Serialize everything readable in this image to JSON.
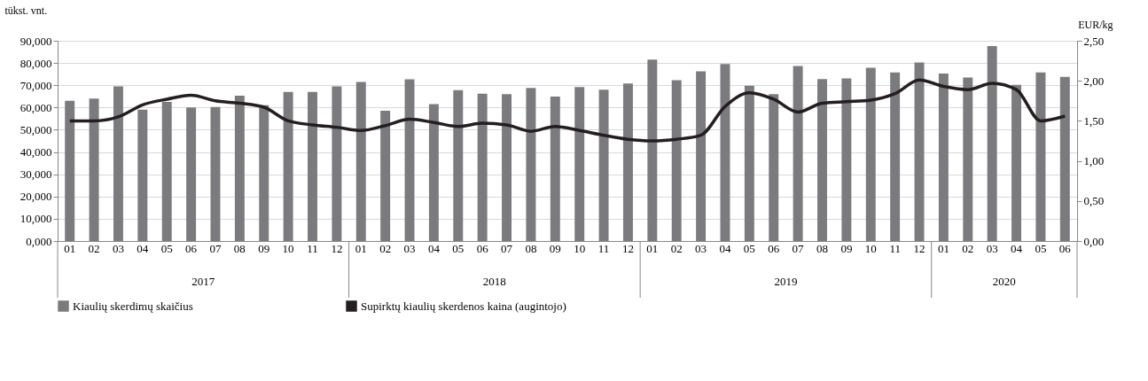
{
  "chart_data": {
    "type": "bar",
    "categories": [
      "01",
      "02",
      "03",
      "04",
      "05",
      "06",
      "07",
      "08",
      "09",
      "10",
      "11",
      "12",
      "01",
      "02",
      "03",
      "04",
      "05",
      "06",
      "07",
      "08",
      "09",
      "10",
      "11",
      "12",
      "01",
      "02",
      "03",
      "04",
      "05",
      "06",
      "07",
      "08",
      "09",
      "10",
      "11",
      "12",
      "01",
      "02",
      "03",
      "04",
      "05",
      "06"
    ],
    "series": [
      {
        "name": "Kiaulių skerdimų skaičius",
        "color": "#7b7b7e",
        "values": [
          63,
          64,
          69.5,
          59,
          62.5,
          60,
          60.2,
          65.3,
          61,
          67,
          67,
          69.5,
          71.5,
          58.5,
          72.7,
          61.5,
          67.8,
          66.2,
          66,
          68.8,
          64.9,
          69.2,
          68,
          70.8,
          81.5,
          72.3,
          76.3,
          79.5,
          69.8,
          66,
          78.7,
          72.8,
          73.1,
          77.9,
          75.8,
          80.2,
          75.3,
          73.5,
          87.6,
          70.2,
          75.8,
          73.8
        ]
      },
      {
        "name": "Supirktų kiaulių skerdenos kaina (augintojo)",
        "type": "line",
        "axis": "y2",
        "color": "#231f20",
        "values": [
          1.5,
          1.5,
          1.55,
          1.7,
          1.77,
          1.82,
          1.75,
          1.72,
          1.67,
          1.5,
          1.45,
          1.42,
          1.38,
          1.44,
          1.52,
          1.48,
          1.43,
          1.47,
          1.45,
          1.37,
          1.43,
          1.38,
          1.32,
          1.27,
          1.25,
          1.27,
          1.32,
          1.68,
          1.85,
          1.77,
          1.61,
          1.72,
          1.74,
          1.76,
          1.84,
          2.01,
          1.93,
          1.89,
          1.97,
          1.89,
          1.5,
          1.56
        ]
      }
    ],
    "annotations": [
      {
        "text": "2017"
      },
      {
        "text": "2018"
      },
      {
        "text": "2019"
      },
      {
        "text": "2020"
      }
    ],
    "ylabel": "tūkst. vnt.",
    "y2label": "EUR/kg",
    "ylim": [
      0,
      90
    ],
    "yticks": [
      {
        "value": 0,
        "label": "0,000"
      },
      {
        "value": 10,
        "label": "10,000"
      },
      {
        "value": 20,
        "label": "20,000"
      },
      {
        "value": 30,
        "label": "30,000"
      },
      {
        "value": 40,
        "label": "40,000"
      },
      {
        "value": 50,
        "label": "50,000"
      },
      {
        "value": 60,
        "label": "60,000"
      },
      {
        "value": 70,
        "label": "70,000"
      },
      {
        "value": 80,
        "label": "80,000"
      },
      {
        "value": 90,
        "label": "90,000"
      }
    ],
    "y2lim": [
      0,
      2.5
    ],
    "y2ticks": [
      {
        "value": 0,
        "label": "0,00"
      },
      {
        "value": 0.5,
        "label": "0,50"
      },
      {
        "value": 1,
        "label": "1,00"
      },
      {
        "value": 1.5,
        "label": "1,50"
      },
      {
        "value": 2,
        "label": "2,00"
      },
      {
        "value": 2.5,
        "label": "2,50"
      }
    ],
    "grid": "y",
    "legend": "bottom",
    "marker": "none",
    "line_style": "solid"
  }
}
